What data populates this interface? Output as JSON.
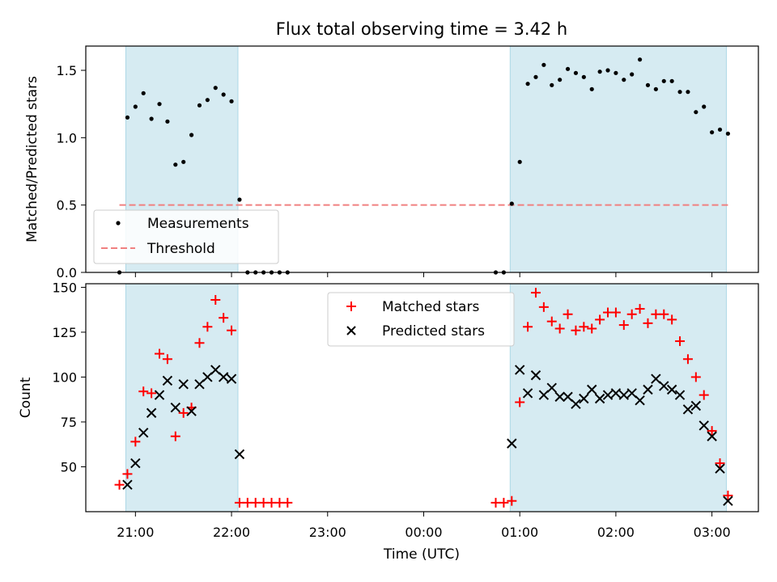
{
  "chart_data": [
    {
      "type": "scatter",
      "title": "Flux total observing time = 3.42 h",
      "xlabel": "",
      "ylabel": "Matched/Predicted stars",
      "xlim": [
        "20:29",
        "03:29"
      ],
      "ylim": [
        0,
        1.68
      ],
      "yticks": [
        "0.0",
        "0.5",
        "1.0",
        "1.5"
      ],
      "observing_windows": [
        [
          "20:54",
          "22:04"
        ],
        [
          "00:54",
          "03:09"
        ]
      ],
      "threshold": {
        "name": "Threshold",
        "value": 0.5,
        "x_range": [
          "20:50",
          "03:10"
        ],
        "color": "#f08080"
      },
      "legend": {
        "placement": "lower-left",
        "entries": [
          "Measurements",
          "Threshold"
        ]
      },
      "series": [
        {
          "name": "Measurements",
          "marker": "dot",
          "color": "#000000",
          "points": [
            [
              "20:50",
              0.0
            ],
            [
              "20:55",
              1.15
            ],
            [
              "21:00",
              1.23
            ],
            [
              "21:05",
              1.33
            ],
            [
              "21:10",
              1.14
            ],
            [
              "21:15",
              1.25
            ],
            [
              "21:20",
              1.12
            ],
            [
              "21:25",
              0.8
            ],
            [
              "21:30",
              0.82
            ],
            [
              "21:35",
              1.02
            ],
            [
              "21:40",
              1.24
            ],
            [
              "21:45",
              1.28
            ],
            [
              "21:50",
              1.37
            ],
            [
              "21:55",
              1.32
            ],
            [
              "22:00",
              1.27
            ],
            [
              "22:05",
              0.54
            ],
            [
              "22:10",
              0.0
            ],
            [
              "22:15",
              0.0
            ],
            [
              "22:20",
              0.0
            ],
            [
              "22:25",
              0.0
            ],
            [
              "22:30",
              0.0
            ],
            [
              "22:35",
              0.0
            ],
            [
              "00:45",
              0.0
            ],
            [
              "00:50",
              0.0
            ],
            [
              "00:55",
              0.51
            ],
            [
              "01:00",
              0.82
            ],
            [
              "01:05",
              1.4
            ],
            [
              "01:10",
              1.45
            ],
            [
              "01:15",
              1.54
            ],
            [
              "01:20",
              1.39
            ],
            [
              "01:25",
              1.43
            ],
            [
              "01:30",
              1.51
            ],
            [
              "01:35",
              1.48
            ],
            [
              "01:40",
              1.45
            ],
            [
              "01:45",
              1.36
            ],
            [
              "01:50",
              1.49
            ],
            [
              "01:55",
              1.5
            ],
            [
              "02:00",
              1.48
            ],
            [
              "02:05",
              1.43
            ],
            [
              "02:10",
              1.47
            ],
            [
              "02:15",
              1.58
            ],
            [
              "02:20",
              1.39
            ],
            [
              "02:25",
              1.36
            ],
            [
              "02:30",
              1.42
            ],
            [
              "02:35",
              1.42
            ],
            [
              "02:40",
              1.34
            ],
            [
              "02:45",
              1.34
            ],
            [
              "02:50",
              1.19
            ],
            [
              "02:55",
              1.23
            ],
            [
              "03:00",
              1.04
            ],
            [
              "03:05",
              1.06
            ],
            [
              "03:10",
              1.03
            ]
          ]
        }
      ]
    },
    {
      "type": "scatter",
      "title": "",
      "xlabel": "Time (UTC)",
      "ylabel": "Count",
      "xlim": [
        "20:29",
        "03:29"
      ],
      "ylim": [
        25,
        152
      ],
      "yticks": [
        "50",
        "75",
        "100",
        "125",
        "150"
      ],
      "xticks": [
        "21:00",
        "22:00",
        "23:00",
        "00:00",
        "01:00",
        "02:00",
        "03:00"
      ],
      "observing_windows": [
        [
          "20:54",
          "22:04"
        ],
        [
          "00:54",
          "03:09"
        ]
      ],
      "legend": {
        "placement": "upper-center",
        "entries": [
          "Matched stars",
          "Predicted stars"
        ]
      },
      "series": [
        {
          "name": "Matched stars",
          "marker": "plus",
          "color": "#ff0000",
          "points": [
            [
              "20:50",
              40
            ],
            [
              "20:55",
              46
            ],
            [
              "21:00",
              64
            ],
            [
              "21:05",
              92
            ],
            [
              "21:10",
              91
            ],
            [
              "21:15",
              113
            ],
            [
              "21:20",
              110
            ],
            [
              "21:25",
              67
            ],
            [
              "21:30",
              80
            ],
            [
              "21:35",
              83
            ],
            [
              "21:40",
              119
            ],
            [
              "21:45",
              128
            ],
            [
              "21:50",
              143
            ],
            [
              "21:55",
              133
            ],
            [
              "22:00",
              126
            ],
            [
              "22:05",
              30
            ],
            [
              "22:10",
              30
            ],
            [
              "22:15",
              30
            ],
            [
              "22:20",
              30
            ],
            [
              "22:25",
              30
            ],
            [
              "22:30",
              30
            ],
            [
              "22:35",
              30
            ],
            [
              "00:45",
              30
            ],
            [
              "00:50",
              30
            ],
            [
              "00:55",
              31
            ],
            [
              "01:00",
              86
            ],
            [
              "01:05",
              128
            ],
            [
              "01:10",
              147
            ],
            [
              "01:15",
              139
            ],
            [
              "01:20",
              131
            ],
            [
              "01:25",
              127
            ],
            [
              "01:30",
              135
            ],
            [
              "01:35",
              126
            ],
            [
              "01:40",
              128
            ],
            [
              "01:45",
              127
            ],
            [
              "01:50",
              132
            ],
            [
              "01:55",
              136
            ],
            [
              "02:00",
              136
            ],
            [
              "02:05",
              129
            ],
            [
              "02:10",
              135
            ],
            [
              "02:15",
              138
            ],
            [
              "02:20",
              130
            ],
            [
              "02:25",
              135
            ],
            [
              "02:30",
              135
            ],
            [
              "02:35",
              132
            ],
            [
              "02:40",
              120
            ],
            [
              "02:45",
              110
            ],
            [
              "02:50",
              100
            ],
            [
              "02:55",
              90
            ],
            [
              "03:00",
              70
            ],
            [
              "03:05",
              52
            ],
            [
              "03:10",
              34
            ]
          ]
        },
        {
          "name": "Predicted stars",
          "marker": "x",
          "color": "#000000",
          "points": [
            [
              "20:55",
              40
            ],
            [
              "21:00",
              52
            ],
            [
              "21:05",
              69
            ],
            [
              "21:10",
              80
            ],
            [
              "21:15",
              90
            ],
            [
              "21:20",
              98
            ],
            [
              "21:25",
              83
            ],
            [
              "21:30",
              96
            ],
            [
              "21:35",
              81
            ],
            [
              "21:40",
              96
            ],
            [
              "21:45",
              100
            ],
            [
              "21:50",
              104
            ],
            [
              "21:55",
              100
            ],
            [
              "22:00",
              99
            ],
            [
              "22:05",
              57
            ],
            [
              "00:55",
              63
            ],
            [
              "01:00",
              104
            ],
            [
              "01:05",
              91
            ],
            [
              "01:10",
              101
            ],
            [
              "01:15",
              90
            ],
            [
              "01:20",
              94
            ],
            [
              "01:25",
              89
            ],
            [
              "01:30",
              89
            ],
            [
              "01:35",
              85
            ],
            [
              "01:40",
              88
            ],
            [
              "01:45",
              93
            ],
            [
              "01:50",
              88
            ],
            [
              "01:55",
              90
            ],
            [
              "02:00",
              91
            ],
            [
              "02:05",
              90
            ],
            [
              "02:10",
              91
            ],
            [
              "02:15",
              87
            ],
            [
              "02:20",
              93
            ],
            [
              "02:25",
              99
            ],
            [
              "02:30",
              95
            ],
            [
              "02:35",
              93
            ],
            [
              "02:40",
              90
            ],
            [
              "02:45",
              82
            ],
            [
              "02:50",
              84
            ],
            [
              "02:55",
              73
            ],
            [
              "03:00",
              67
            ],
            [
              "03:05",
              49
            ],
            [
              "03:10",
              31
            ]
          ]
        }
      ]
    }
  ]
}
